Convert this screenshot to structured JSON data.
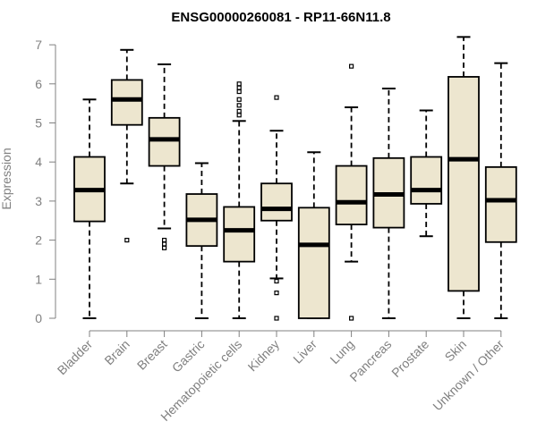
{
  "chart_data": {
    "type": "boxplot",
    "title": "ENSG00000260081 - RP11-66N11.8",
    "xlabel": "",
    "ylabel": "Expression",
    "ylim": [
      0,
      7.2
    ],
    "yticks": [
      0,
      1,
      2,
      3,
      4,
      5,
      6,
      7
    ],
    "grid": false,
    "legend": "none",
    "colors": {
      "box_fill": "#ede6cf",
      "stroke": "#000000",
      "axis": "#808080"
    },
    "categories": [
      "Bladder",
      "Brain",
      "Breast",
      "Gastric",
      "Hematopoietic cells",
      "Kidney",
      "Liver",
      "Lung",
      "Pancreas",
      "Prostate",
      "Skin",
      "Unknown / Other"
    ],
    "boxes": [
      {
        "name": "Bladder",
        "whisker_low": 0,
        "q1": 2.48,
        "median": 3.28,
        "q3": 4.13,
        "whisker_high": 5.6,
        "outliers": []
      },
      {
        "name": "Brain",
        "whisker_low": 3.45,
        "q1": 4.95,
        "median": 5.6,
        "q3": 6.1,
        "whisker_high": 6.87,
        "outliers": [
          2.0
        ]
      },
      {
        "name": "Breast",
        "whisker_low": 2.3,
        "q1": 3.9,
        "median": 4.58,
        "q3": 5.13,
        "whisker_high": 6.5,
        "outliers": [
          2.0,
          1.9,
          1.8
        ]
      },
      {
        "name": "Gastric",
        "whisker_low": 0,
        "q1": 1.85,
        "median": 2.52,
        "q3": 3.18,
        "whisker_high": 3.97,
        "outliers": []
      },
      {
        "name": "Hematopoietic cells",
        "whisker_low": 0,
        "q1": 1.45,
        "median": 2.25,
        "q3": 2.85,
        "whisker_high": 5.05,
        "outliers": [
          5.2,
          5.3,
          5.45,
          5.6,
          5.8,
          5.9,
          6.0
        ]
      },
      {
        "name": "Kidney",
        "whisker_low": 1.02,
        "q1": 2.5,
        "median": 2.8,
        "q3": 3.45,
        "whisker_high": 4.8,
        "outliers": [
          5.65,
          0.95,
          0.65,
          0.0
        ]
      },
      {
        "name": "Liver",
        "whisker_low": 0,
        "q1": 0,
        "median": 1.88,
        "q3": 2.83,
        "whisker_high": 4.25,
        "outliers": []
      },
      {
        "name": "Lung",
        "whisker_low": 1.45,
        "q1": 2.4,
        "median": 2.97,
        "q3": 3.9,
        "whisker_high": 5.4,
        "outliers": [
          6.45,
          0.0
        ]
      },
      {
        "name": "Pancreas",
        "whisker_low": 0,
        "q1": 2.32,
        "median": 3.17,
        "q3": 4.1,
        "whisker_high": 5.88,
        "outliers": []
      },
      {
        "name": "Prostate",
        "whisker_low": 2.1,
        "q1": 2.93,
        "median": 3.28,
        "q3": 4.13,
        "whisker_high": 5.32,
        "outliers": []
      },
      {
        "name": "Skin",
        "whisker_low": 0,
        "q1": 0.7,
        "median": 4.07,
        "q3": 6.18,
        "whisker_high": 7.2,
        "outliers": []
      },
      {
        "name": "Unknown / Other",
        "whisker_low": 0,
        "q1": 1.95,
        "median": 3.02,
        "q3": 3.87,
        "whisker_high": 6.53,
        "outliers": []
      }
    ]
  }
}
